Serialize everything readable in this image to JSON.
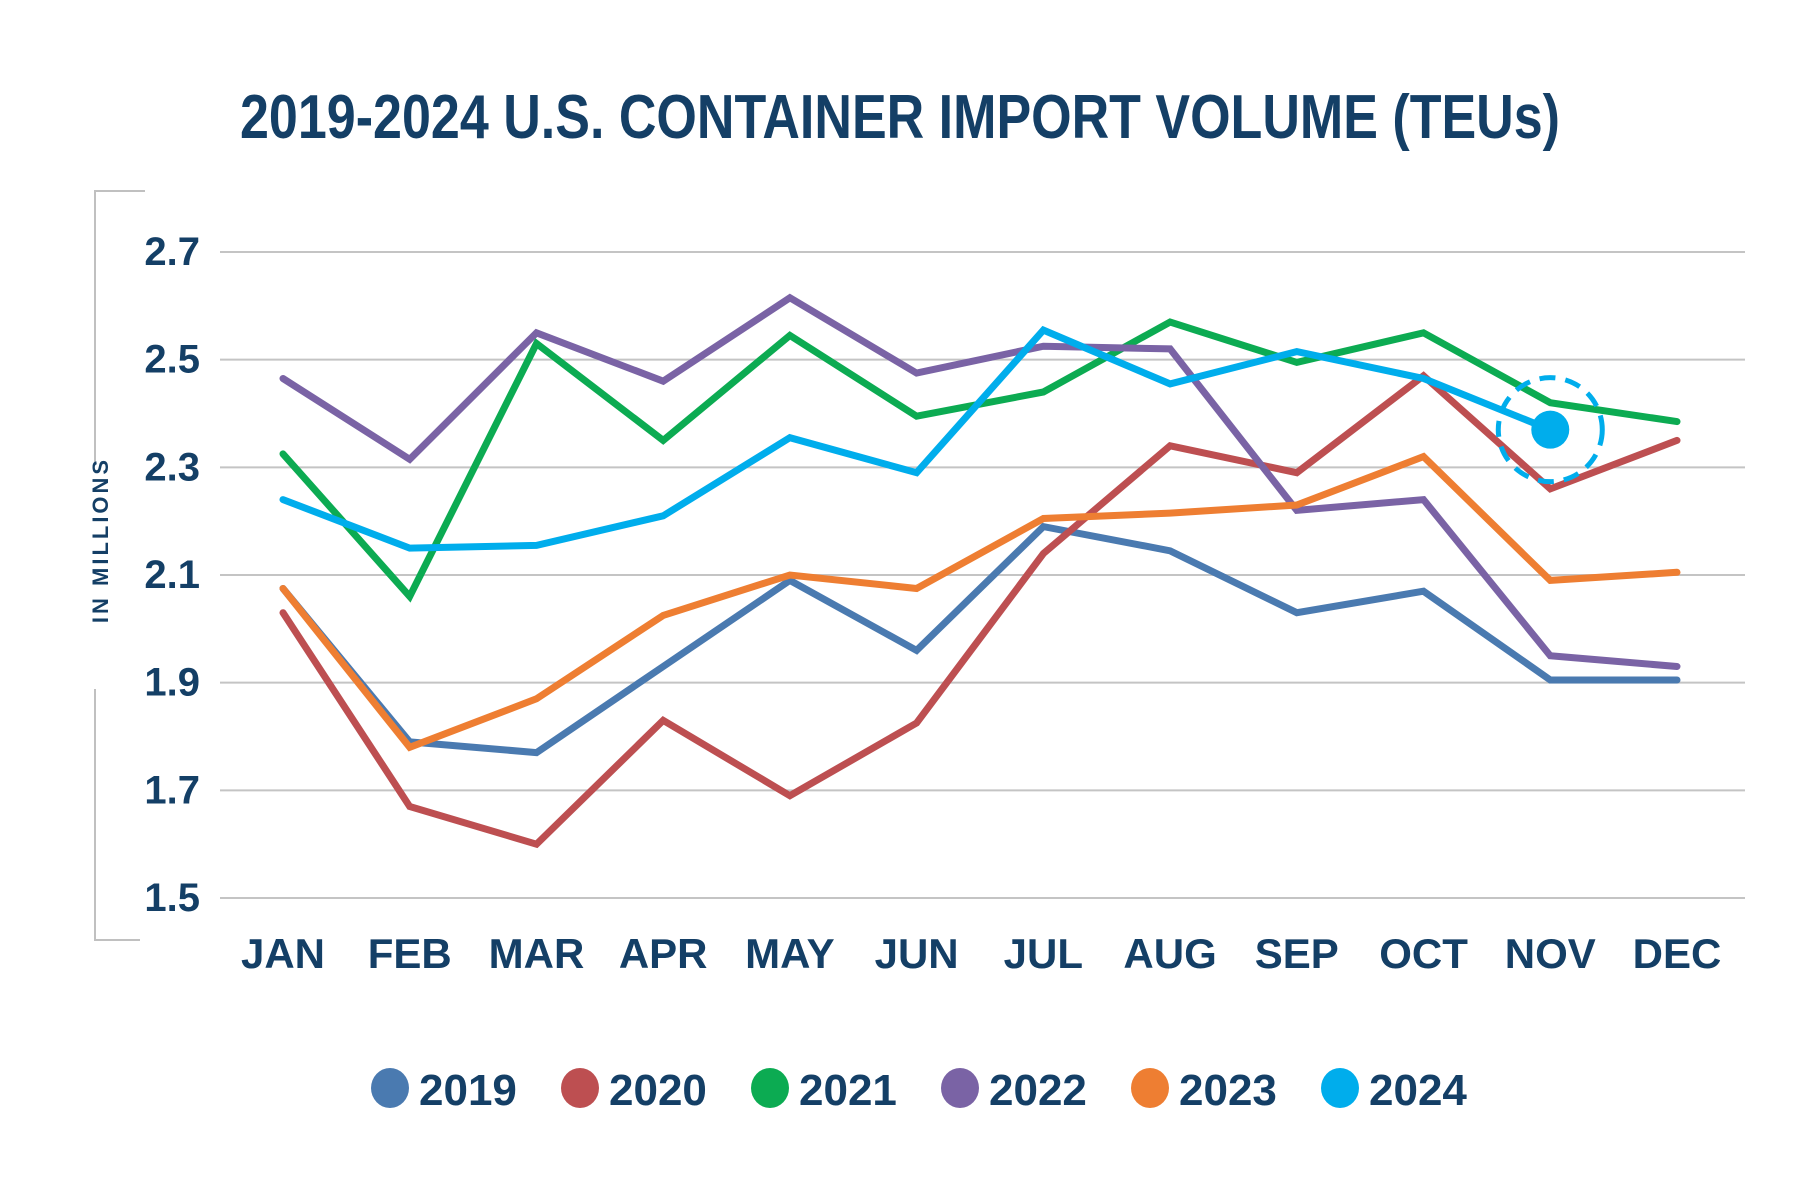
{
  "chart_data": {
    "type": "line",
    "title": "2019-2024 U.S. CONTAINER IMPORT VOLUME (TEUs)",
    "xlabel": "",
    "ylabel": "IN MILLIONS",
    "categories": [
      "JAN",
      "FEB",
      "MAR",
      "APR",
      "MAY",
      "JUN",
      "JUL",
      "AUG",
      "SEP",
      "OCT",
      "NOV",
      "DEC"
    ],
    "ylim": [
      1.5,
      2.7
    ],
    "yticks": [
      "2.7",
      "2.5",
      "2.3",
      "2.1",
      "1.9",
      "1.7",
      "1.5"
    ],
    "ytick_values": [
      2.7,
      2.5,
      2.3,
      2.1,
      1.9,
      1.7,
      1.5
    ],
    "grid": true,
    "legend_position": "bottom-center",
    "series": [
      {
        "name": "2019",
        "color": "#4a7ab0",
        "values": [
          2.075,
          1.79,
          1.77,
          1.93,
          2.09,
          1.96,
          2.19,
          2.145,
          2.03,
          2.07,
          1.905,
          1.905
        ]
      },
      {
        "name": "2020",
        "color": "#bd4f51",
        "values": [
          2.03,
          1.67,
          1.6,
          1.83,
          1.69,
          1.825,
          2.14,
          2.34,
          2.29,
          2.47,
          2.26,
          2.35
        ]
      },
      {
        "name": "2021",
        "color": "#0cab52",
        "values": [
          2.325,
          2.06,
          2.53,
          2.35,
          2.545,
          2.395,
          2.44,
          2.57,
          2.495,
          2.55,
          2.42,
          2.385
        ]
      },
      {
        "name": "2022",
        "color": "#7a63a5",
        "values": [
          2.465,
          2.315,
          2.55,
          2.46,
          2.615,
          2.475,
          2.525,
          2.52,
          2.22,
          2.24,
          1.95,
          1.93
        ]
      },
      {
        "name": "2023",
        "color": "#ee7e32",
        "values": [
          2.075,
          1.78,
          1.87,
          2.025,
          2.1,
          2.075,
          2.205,
          2.215,
          2.23,
          2.32,
          2.09,
          2.105
        ]
      },
      {
        "name": "2024",
        "color": "#00adec",
        "values": [
          2.24,
          2.15,
          2.155,
          2.21,
          2.355,
          2.29,
          2.555,
          2.455,
          2.515,
          2.465,
          2.37,
          null
        ]
      }
    ],
    "highlight": {
      "series": "2024",
      "category": "NOV",
      "value": 2.37,
      "style": "filled dot with dashed ring"
    }
  }
}
